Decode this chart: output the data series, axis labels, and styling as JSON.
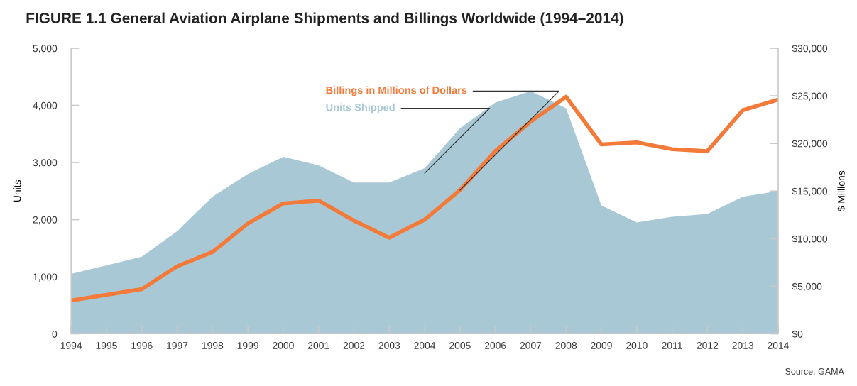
{
  "chart_data": {
    "type": "area",
    "title": "FIGURE 1.1 General Aviation Airplane Shipments and Billings Worldwide (1994–2014)",
    "x": [
      1994,
      1995,
      1996,
      1997,
      1998,
      1999,
      2000,
      2001,
      2002,
      2003,
      2004,
      2005,
      2006,
      2007,
      2008,
      2009,
      2010,
      2011,
      2012,
      2013,
      2014
    ],
    "series": [
      {
        "name": "Units Shipped",
        "color": "#a8c8d6",
        "values": [
          1050,
          1200,
          1350,
          1800,
          2400,
          2800,
          3100,
          2950,
          2650,
          2650,
          2900,
          3600,
          4050,
          4250,
          3950,
          2250,
          1950,
          2050,
          2100,
          2400,
          2500
        ]
      },
      {
        "name": "Billings in Millions of Dollars",
        "type": "line",
        "axis": "y2",
        "color": "#f47a3a",
        "values": [
          3500,
          4100,
          4700,
          7100,
          8600,
          11600,
          13700,
          14000,
          11900,
          10100,
          12000,
          15100,
          19200,
          22300,
          24900,
          19900,
          20100,
          19400,
          19200,
          23500,
          24600
        ]
      }
    ],
    "ylabel": "Units",
    "y2label": "$ Millions",
    "xlim": [
      1994,
      2014
    ],
    "xticks": [
      1994,
      1995,
      1996,
      1997,
      1998,
      1999,
      2000,
      2001,
      2002,
      2003,
      2004,
      2005,
      2006,
      2007,
      2008,
      2009,
      2010,
      2011,
      2012,
      2013,
      2014
    ],
    "ylim": [
      0,
      5000
    ],
    "yticks": [
      0,
      {
        "value": 1000,
        "label": "1,000"
      },
      {
        "value": 2000,
        "label": "2,000"
      },
      {
        "value": 3000,
        "label": "3,000"
      },
      {
        "value": 4000,
        "label": "4,000"
      },
      {
        "value": 5000,
        "label": "5,000"
      }
    ],
    "y2lim": [
      0,
      30000
    ],
    "y2ticks": [
      {
        "value": 0,
        "label": "$0"
      },
      {
        "value": 5000,
        "label": "$5,000"
      },
      {
        "value": 10000,
        "label": "$10,000"
      },
      {
        "value": 15000,
        "label": "$15,000"
      },
      {
        "value": 20000,
        "label": "$20,000"
      },
      {
        "value": 25000,
        "label": "$25,000"
      },
      {
        "value": 30000,
        "label": "$30,000"
      }
    ],
    "annotations": [
      "Source: GAMA"
    ],
    "grid": false,
    "legend": false
  }
}
